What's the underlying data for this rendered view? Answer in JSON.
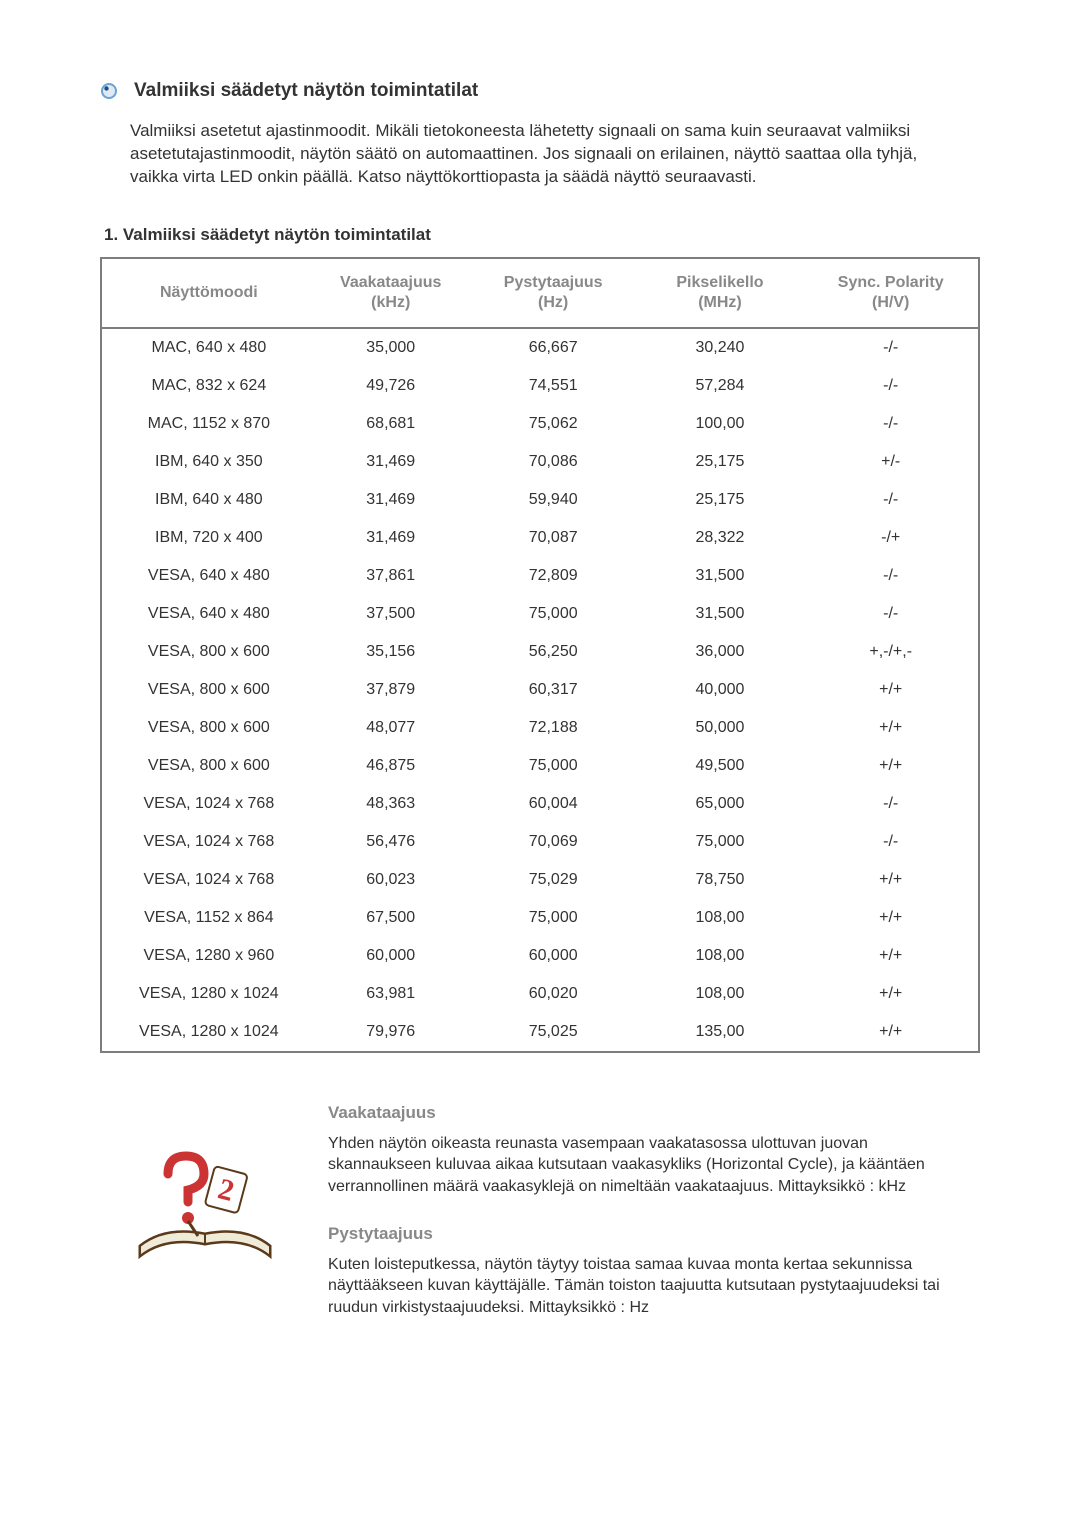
{
  "title": "Valmiiksi säädetyt näytön toimintatilat",
  "intro": "Valmiiksi asetetut ajastinmoodit. Mikäli tietokoneesta lähetetty signaali on sama kuin seuraavat valmiiksi asetetutajastinmoodit, näytön säätö on automaattinen. Jos signaali on erilainen, näyttö saattaa olla tyhjä, vaikka virta LED onkin päällä. Katso näyttökorttiopasta ja säädä näyttö seuraavasti.",
  "subheading": "1. Valmiiksi säädetyt näytön toimintatilat",
  "table": {
    "columns": [
      "Näyttömoodi",
      "Vaakataajuus (kHz)",
      "Pystytaajuus (Hz)",
      "Pikselikello (MHz)",
      "Sync. Polarity (H/V)"
    ],
    "header_lines": [
      [
        "Näyttömoodi",
        ""
      ],
      [
        "Vaakataajuus",
        "(kHz)"
      ],
      [
        "Pystytaajuus",
        "(Hz)"
      ],
      [
        "Pikselikello",
        "(MHz)"
      ],
      [
        "Sync. Polarity",
        "(H/V)"
      ]
    ],
    "col_widths": [
      "24%",
      "18%",
      "19%",
      "19%",
      "20%"
    ],
    "rows": [
      [
        "MAC, 640 x 480",
        "35,000",
        "66,667",
        "30,240",
        "-/-"
      ],
      [
        "MAC, 832 x 624",
        "49,726",
        "74,551",
        "57,284",
        "-/-"
      ],
      [
        "MAC, 1152 x 870",
        "68,681",
        "75,062",
        "100,00",
        "-/-"
      ],
      [
        "IBM, 640 x 350",
        "31,469",
        "70,086",
        "25,175",
        "+/-"
      ],
      [
        "IBM, 640 x 480",
        "31,469",
        "59,940",
        "25,175",
        "-/-"
      ],
      [
        "IBM, 720 x 400",
        "31,469",
        "70,087",
        "28,322",
        "-/+"
      ],
      [
        "VESA, 640 x 480",
        "37,861",
        "72,809",
        "31,500",
        "-/-"
      ],
      [
        "VESA, 640 x 480",
        "37,500",
        "75,000",
        "31,500",
        "-/-"
      ],
      [
        "VESA, 800 x 600",
        "35,156",
        "56,250",
        "36,000",
        "+,-/+,-"
      ],
      [
        "VESA, 800 x 600",
        "37,879",
        "60,317",
        "40,000",
        "+/+"
      ],
      [
        "VESA, 800 x 600",
        "48,077",
        "72,188",
        "50,000",
        "+/+"
      ],
      [
        "VESA, 800 x 600",
        "46,875",
        "75,000",
        "49,500",
        "+/+"
      ],
      [
        "VESA, 1024 x 768",
        "48,363",
        "60,004",
        "65,000",
        "-/-"
      ],
      [
        "VESA, 1024 x 768",
        "56,476",
        "70,069",
        "75,000",
        "-/-"
      ],
      [
        "VESA, 1024 x 768",
        "60,023",
        "75,029",
        "78,750",
        "+/+"
      ],
      [
        "VESA, 1152 x 864",
        "67,500",
        "75,000",
        "108,00",
        "+/+"
      ],
      [
        "VESA, 1280 x 960",
        "60,000",
        "60,000",
        "108,00",
        "+/+"
      ],
      [
        "VESA, 1280 x 1024",
        "63,981",
        "60,020",
        "108,00",
        "+/+"
      ],
      [
        "VESA, 1280 x 1024",
        "79,976",
        "75,025",
        "135,00",
        "+/+"
      ]
    ]
  },
  "definitions": [
    {
      "term": "Vaakataajuus",
      "text": "Yhden näytön oikeasta reunasta vasempaan vaakatasossa ulottuvan juovan skannaukseen kuluvaa aikaa kutsutaan vaakasykliks (Horizontal Cycle), ja kääntäen verrannollinen määrä vaakasyklejä on nimeltään vaakataajuus. Mittayksikkö : kHz"
    },
    {
      "term": "Pystytaajuus",
      "text": "Kuten loisteputkessa, näytön täytyy toistaa samaa kuvaa monta kertaa sekunnissa näyttääkseen kuvan käyttäjälle. Tämän toiston taajuutta kutsutaan pystytaajuudeksi tai ruudun virkistystaajuudeksi. Mittayksikkö : Hz"
    }
  ],
  "colors": {
    "text": "#333333",
    "muted": "#888888",
    "table_border": "#7d7d7d",
    "bullet_outer": "#6aa2d6",
    "bullet_spot": "#1e4f7c",
    "book_red": "#cc3333",
    "book_outline": "#5a3a1a",
    "book_page": "#f5f2e8"
  }
}
